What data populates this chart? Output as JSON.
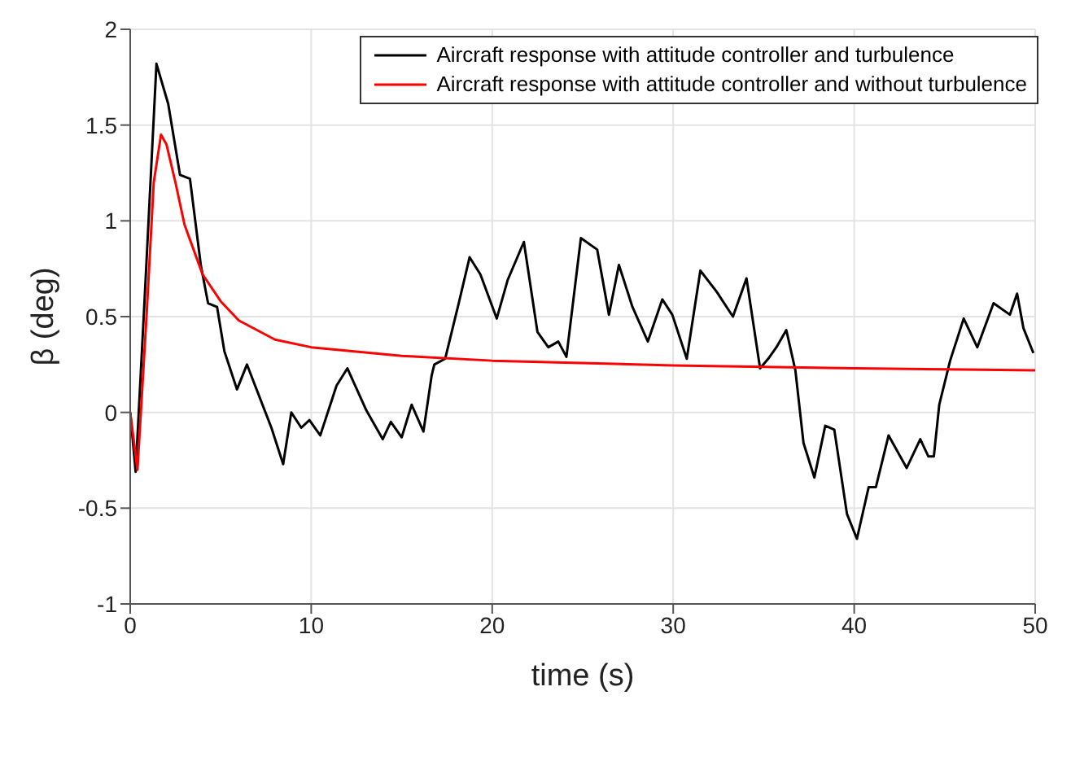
{
  "chart_data": {
    "type": "line",
    "xlabel": "time (s)",
    "ylabel": "β (deg)",
    "xlim": [
      0,
      50
    ],
    "ylim": [
      -1,
      2
    ],
    "xticks": [
      0,
      10,
      20,
      30,
      40,
      50
    ],
    "yticks": [
      -1,
      -0.5,
      0,
      0.5,
      1,
      1.5,
      2
    ],
    "grid": true,
    "legend": "top right",
    "marker": "none",
    "line_style": "solid",
    "series": [
      {
        "name": "Aircraft response with attitude controller and turbulence",
        "color": "#000000",
        "x": [
          0,
          0.3,
          0.8,
          1.45,
          2.1,
          2.75,
          3.3,
          3.9,
          4.3,
          4.8,
          5.2,
          5.9,
          6.45,
          6.9,
          7.8,
          8.45,
          8.9,
          9.45,
          9.9,
          10.5,
          11.4,
          12,
          13.05,
          13.95,
          14.4,
          15,
          15.55,
          16.2,
          16.65,
          16.8,
          17.4,
          18.15,
          18.75,
          19.35,
          20.25,
          20.85,
          21.75,
          22.5,
          23.1,
          23.65,
          24.1,
          24.9,
          25.8,
          26.45,
          27,
          27.75,
          28.6,
          29.4,
          29.95,
          30.75,
          31.5,
          32.4,
          33.3,
          34.05,
          34.8,
          35.25,
          35.7,
          36.25,
          36.75,
          37.2,
          37.8,
          38.4,
          38.9,
          39.6,
          40.15,
          40.8,
          41.2,
          41.9,
          42.9,
          43.65,
          44.1,
          44.4,
          44.7,
          45.3,
          46.05,
          46.8,
          47.7,
          48.6,
          49,
          49.35,
          49.9
        ],
        "values": [
          0,
          -0.31,
          0.6,
          1.82,
          1.61,
          1.24,
          1.22,
          0.77,
          0.57,
          0.55,
          0.32,
          0.12,
          0.25,
          0.14,
          -0.08,
          -0.27,
          0,
          -0.08,
          -0.04,
          -0.12,
          0.14,
          0.23,
          0.01,
          -0.14,
          -0.05,
          -0.13,
          0.04,
          -0.1,
          0.19,
          0.25,
          0.28,
          0.57,
          0.81,
          0.72,
          0.49,
          0.69,
          0.89,
          0.42,
          0.34,
          0.37,
          0.29,
          0.91,
          0.85,
          0.51,
          0.77,
          0.55,
          0.37,
          0.59,
          0.51,
          0.28,
          0.74,
          0.63,
          0.5,
          0.7,
          0.23,
          0.28,
          0.34,
          0.43,
          0.22,
          -0.16,
          -0.34,
          -0.07,
          -0.09,
          -0.53,
          -0.66,
          -0.39,
          -0.39,
          -0.12,
          -0.29,
          -0.14,
          -0.23,
          -0.23,
          0.04,
          0.27,
          0.49,
          0.34,
          0.57,
          0.51,
          0.62,
          0.44,
          0.31
        ]
      },
      {
        "name": "Aircraft response with attitude controller and without turbulence",
        "color": "#ff0000",
        "x": [
          0,
          0.4,
          0.9,
          1.3,
          1.7,
          2,
          2.5,
          3,
          3.5,
          4,
          5,
          6,
          8,
          10,
          15,
          20,
          30,
          40,
          50
        ],
        "values": [
          0,
          -0.3,
          0.5,
          1.2,
          1.45,
          1.4,
          1.2,
          0.98,
          0.85,
          0.72,
          0.58,
          0.48,
          0.38,
          0.34,
          0.295,
          0.27,
          0.245,
          0.23,
          0.22
        ]
      }
    ]
  }
}
